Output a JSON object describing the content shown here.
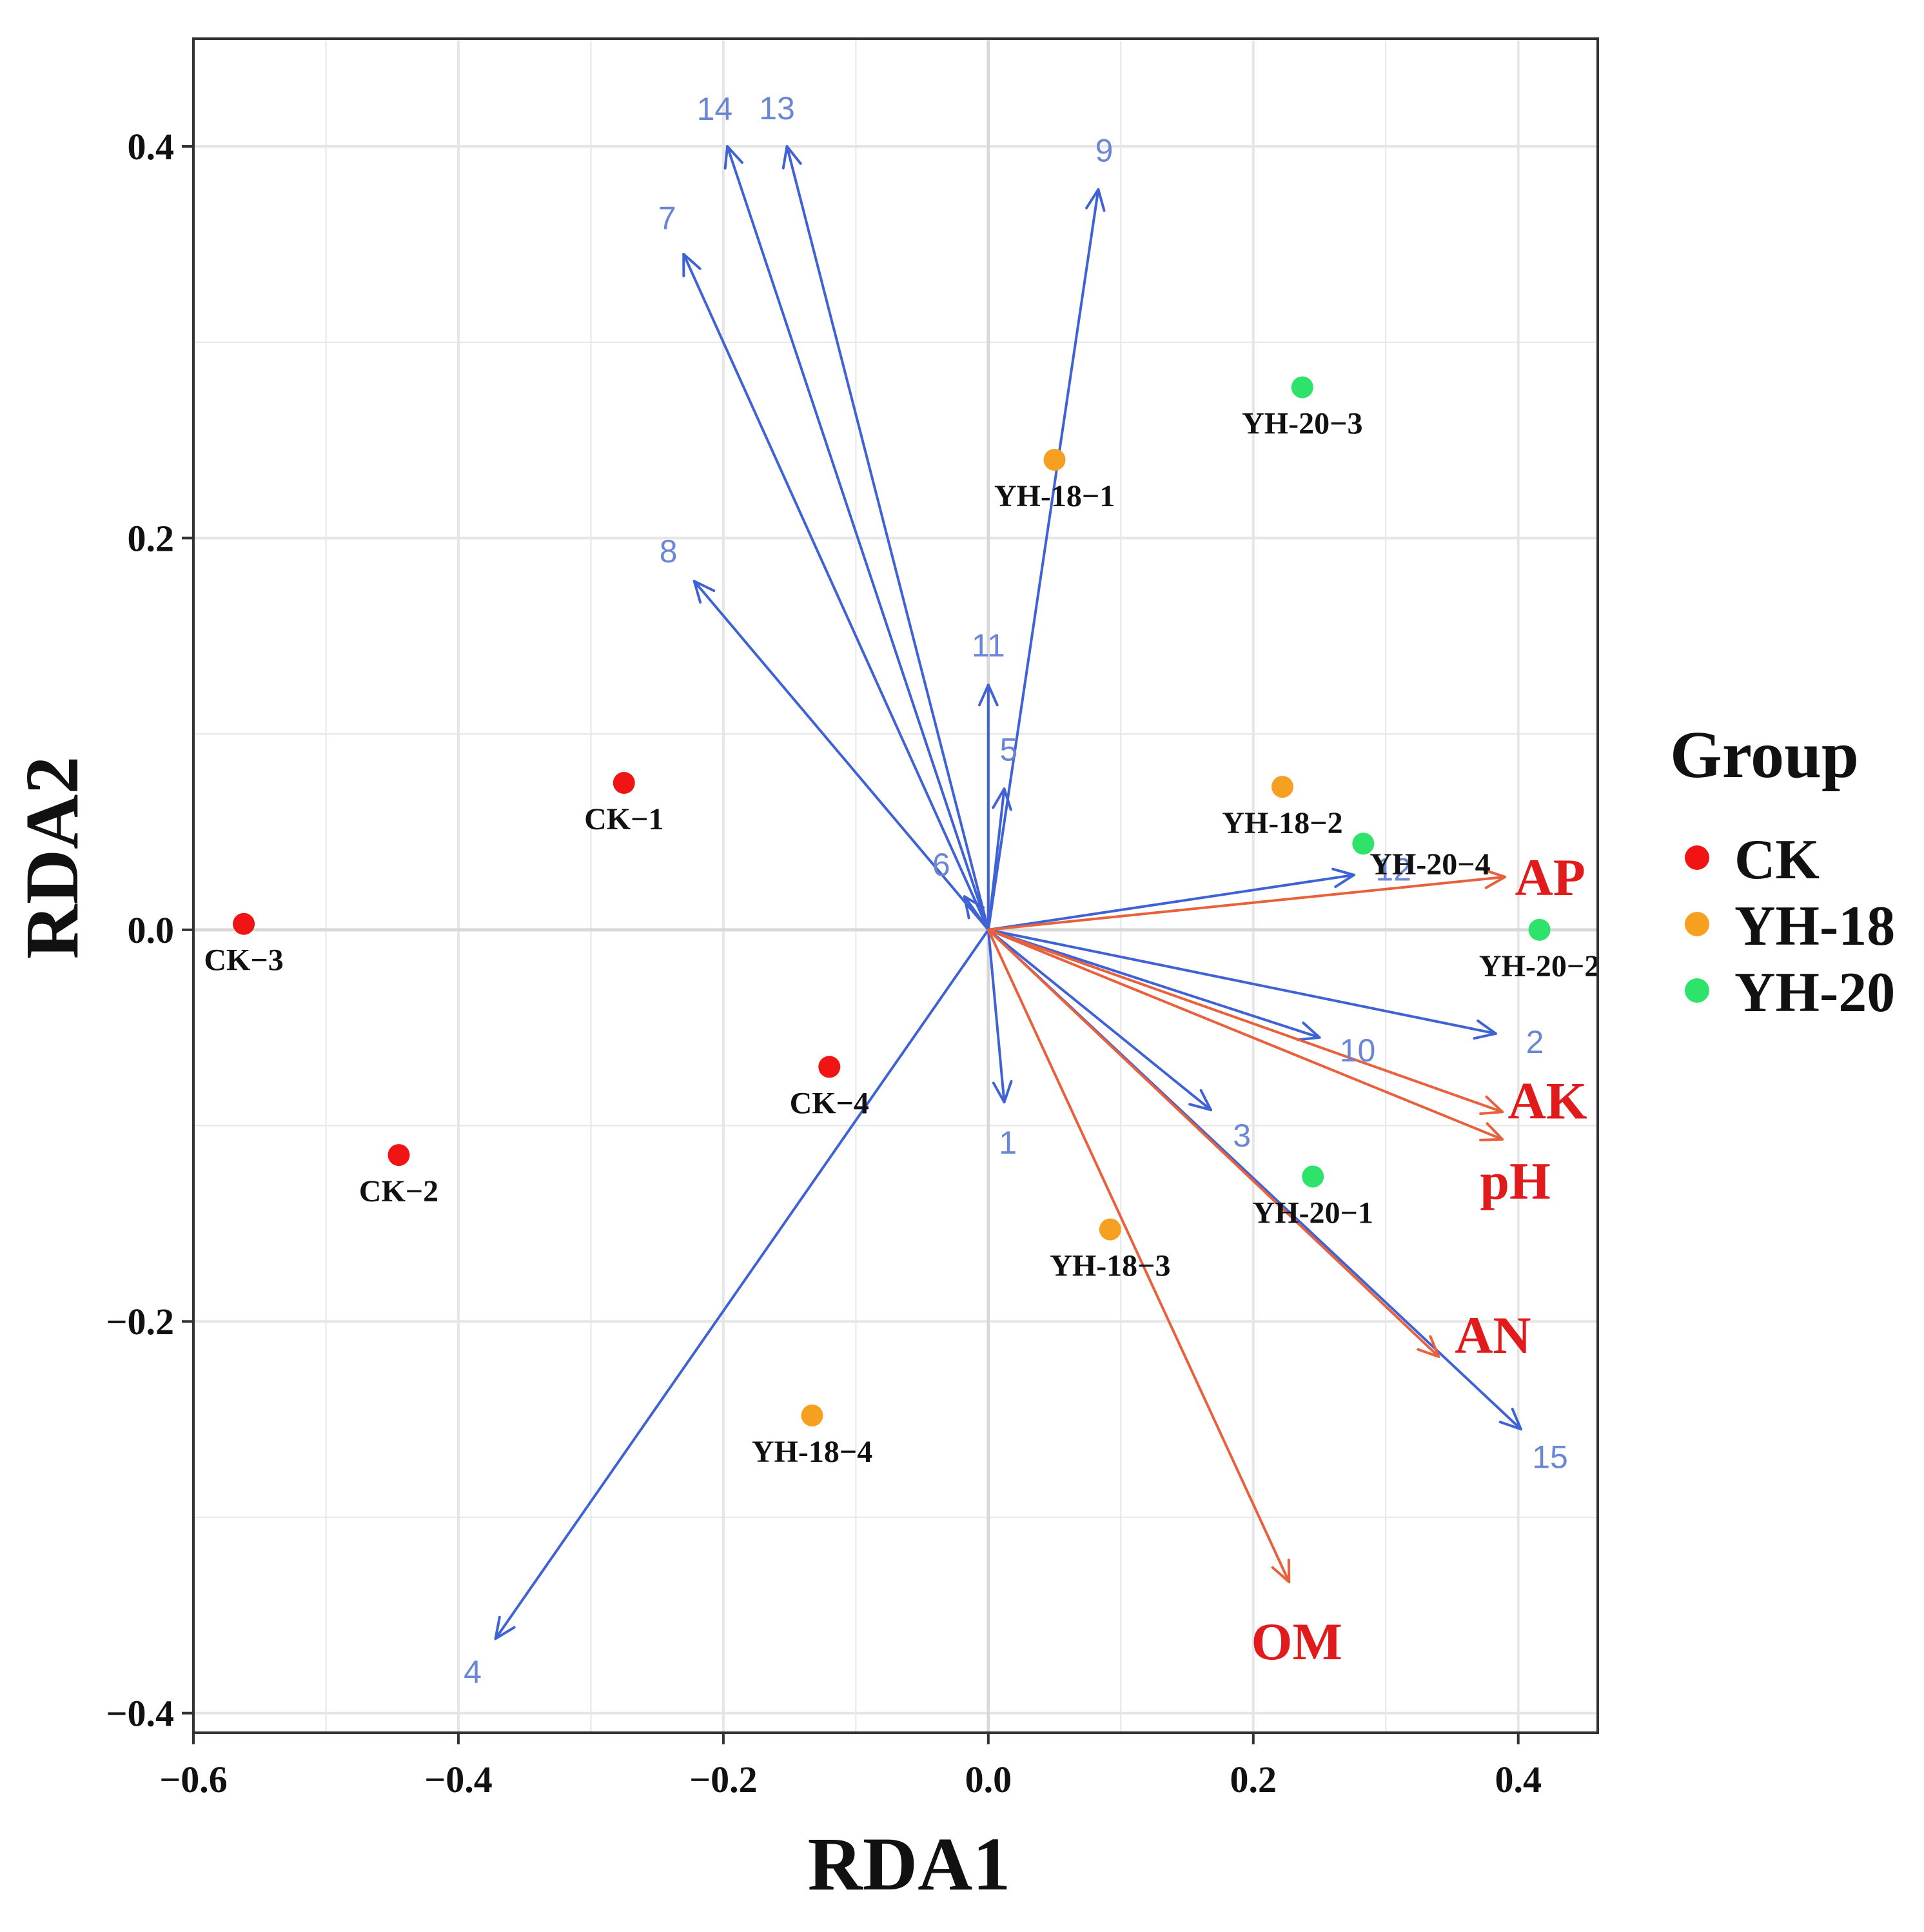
{
  "chart_data": {
    "type": "scatter",
    "xlabel": "RDA1",
    "ylabel": "RDA2",
    "xlim": [
      -0.6,
      0.46
    ],
    "ylim": [
      -0.41,
      0.455
    ],
    "x_ticks": [
      -0.6,
      -0.4,
      -0.2,
      0.0,
      0.2,
      0.4
    ],
    "y_ticks": [
      -0.4,
      -0.2,
      0.0,
      0.2,
      0.4
    ],
    "x_tick_labels": [
      "−0.6",
      "−0.4",
      "−0.2",
      "0.0",
      "0.2",
      "0.4"
    ],
    "y_tick_labels": [
      "−0.4",
      "−0.2",
      "0.0",
      "0.2",
      "0.4"
    ],
    "grid": true,
    "legend": {
      "title": "Group",
      "position": "right",
      "entries": [
        {
          "name": "CK",
          "color": "#f01414"
        },
        {
          "name": "YH-18",
          "color": "#f5a020"
        },
        {
          "name": "YH-20",
          "color": "#2ee36a"
        }
      ]
    },
    "samples": [
      {
        "label": "CK−1",
        "group": "CK",
        "x": -0.275,
        "y": 0.075
      },
      {
        "label": "CK−2",
        "group": "CK",
        "x": -0.445,
        "y": -0.115
      },
      {
        "label": "CK−3",
        "group": "CK",
        "x": -0.562,
        "y": 0.003
      },
      {
        "label": "CK−4",
        "group": "CK",
        "x": -0.12,
        "y": -0.07
      },
      {
        "label": "YH-18−1",
        "group": "YH-18",
        "x": 0.05,
        "y": 0.24
      },
      {
        "label": "YH-18−2",
        "group": "YH-18",
        "x": 0.222,
        "y": 0.073
      },
      {
        "label": "YH-18−3",
        "group": "YH-18",
        "x": 0.092,
        "y": -0.153
      },
      {
        "label": "YH-18−4",
        "group": "YH-18",
        "x": -0.133,
        "y": -0.248
      },
      {
        "label": "YH-20−1",
        "group": "YH-20",
        "x": 0.245,
        "y": -0.126
      },
      {
        "label": "YH-20−2",
        "group": "YH-20",
        "x": 0.416,
        "y": 0.0
      },
      {
        "label": "YH-20−3",
        "group": "YH-20",
        "x": 0.237,
        "y": 0.277
      },
      {
        "label": "YH-20−4",
        "group": "YH-20",
        "x": 0.283,
        "y": 0.044
      }
    ],
    "species_arrows": [
      {
        "label": "1",
        "x": 0.012,
        "y": -0.088
      },
      {
        "label": "2",
        "x": 0.383,
        "y": -0.053
      },
      {
        "label": "3",
        "x": 0.168,
        "y": -0.092
      },
      {
        "label": "4",
        "x": -0.372,
        "y": -0.362
      },
      {
        "label": "5",
        "x": 0.012,
        "y": 0.072
      },
      {
        "label": "6",
        "x": -0.018,
        "y": 0.017
      },
      {
        "label": "7",
        "x": -0.23,
        "y": 0.345
      },
      {
        "label": "8",
        "x": -0.222,
        "y": 0.178
      },
      {
        "label": "9",
        "x": 0.083,
        "y": 0.378
      },
      {
        "label": "10",
        "x": 0.25,
        "y": -0.055
      },
      {
        "label": "11",
        "x": 0.0,
        "y": 0.125
      },
      {
        "label": "12",
        "x": 0.276,
        "y": 0.028
      },
      {
        "label": "13",
        "x": -0.152,
        "y": 0.4
      },
      {
        "label": "14",
        "x": -0.197,
        "y": 0.4
      },
      {
        "label": "15",
        "x": 0.402,
        "y": -0.255
      }
    ],
    "env_arrows": [
      {
        "label": "AP",
        "x": 0.39,
        "y": 0.027
      },
      {
        "label": "AK",
        "x": 0.388,
        "y": -0.093
      },
      {
        "label": "pH",
        "x": 0.388,
        "y": -0.107
      },
      {
        "label": "AN",
        "x": 0.34,
        "y": -0.218
      },
      {
        "label": "OM",
        "x": 0.227,
        "y": -0.333
      }
    ],
    "colors": {
      "species_arrow": "#3f62d4",
      "species_label": "#6a86d4",
      "env_arrow": "#e8603c",
      "env_label": "#e11b1b",
      "grid": "#e6e6e6",
      "frame": "#333333"
    }
  }
}
